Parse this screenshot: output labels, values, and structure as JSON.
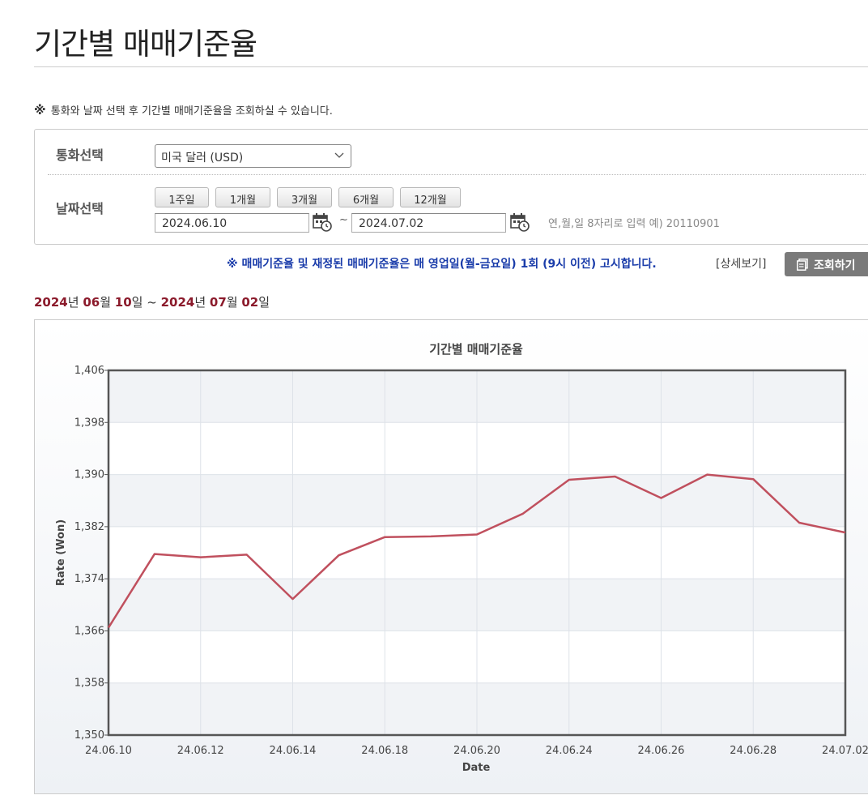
{
  "page": {
    "title": "기간별 매매기준율",
    "notice_mark": "※",
    "notice": "통화와 날짜 선택 후 기간별 매매기준율을 조회하실 수 있습니다."
  },
  "search": {
    "currency_label": "통화선택",
    "currency_value": "미국 달러 (USD)",
    "date_label": "날짜선택",
    "periods": [
      "1주일",
      "1개월",
      "3개월",
      "6개월",
      "12개월"
    ],
    "start_date": "2024.06.10",
    "tilde": "~",
    "end_date": "2024.07.02",
    "date_hint": "연,월,일 8자리로 입력 예) 20110901",
    "blue_notice": "※ 매매기준율 및 재정된 매매기준율은 매 영업일(월-금요일) 1회 (9시 이전) 고시합니다.",
    "detail_link": "[상세보기]",
    "search_button": "조회하기"
  },
  "range": {
    "y1": "2024",
    "m1": "06",
    "d1": "10",
    "y2": "2024",
    "m2": "07",
    "d2": "02",
    "year_unit": "년 ",
    "month_unit": "월 ",
    "day_unit": "일",
    "sep": " ~ "
  },
  "colors": {
    "line": "#c0505e",
    "accent_red": "#8b1a2b",
    "notice_blue": "#1a3caa",
    "grid": "#dde2e8"
  },
  "chart_data": {
    "type": "line",
    "title": "기간별 매매기준율",
    "xlabel": "Date",
    "ylabel": "Rate (Won)",
    "ylim": [
      1350,
      1406
    ],
    "yticks": [
      "1,350",
      "1,358",
      "1,366",
      "1,374",
      "1,382",
      "1,390",
      "1,398",
      "1,406"
    ],
    "xtick_labels": [
      "24.06.10",
      "24.06.12",
      "24.06.14",
      "24.06.18",
      "24.06.20",
      "24.06.24",
      "24.06.26",
      "24.06.28",
      "24.07.02"
    ],
    "grid": true,
    "series": [
      {
        "values": [
          1366.5,
          1377.8,
          1377.3,
          1377.7,
          1370.9,
          1377.6,
          1380.4,
          1380.5,
          1380.8,
          1384.0,
          1389.2,
          1389.7,
          1386.4,
          1390.0,
          1389.3,
          1382.6,
          1381.1
        ]
      }
    ]
  }
}
